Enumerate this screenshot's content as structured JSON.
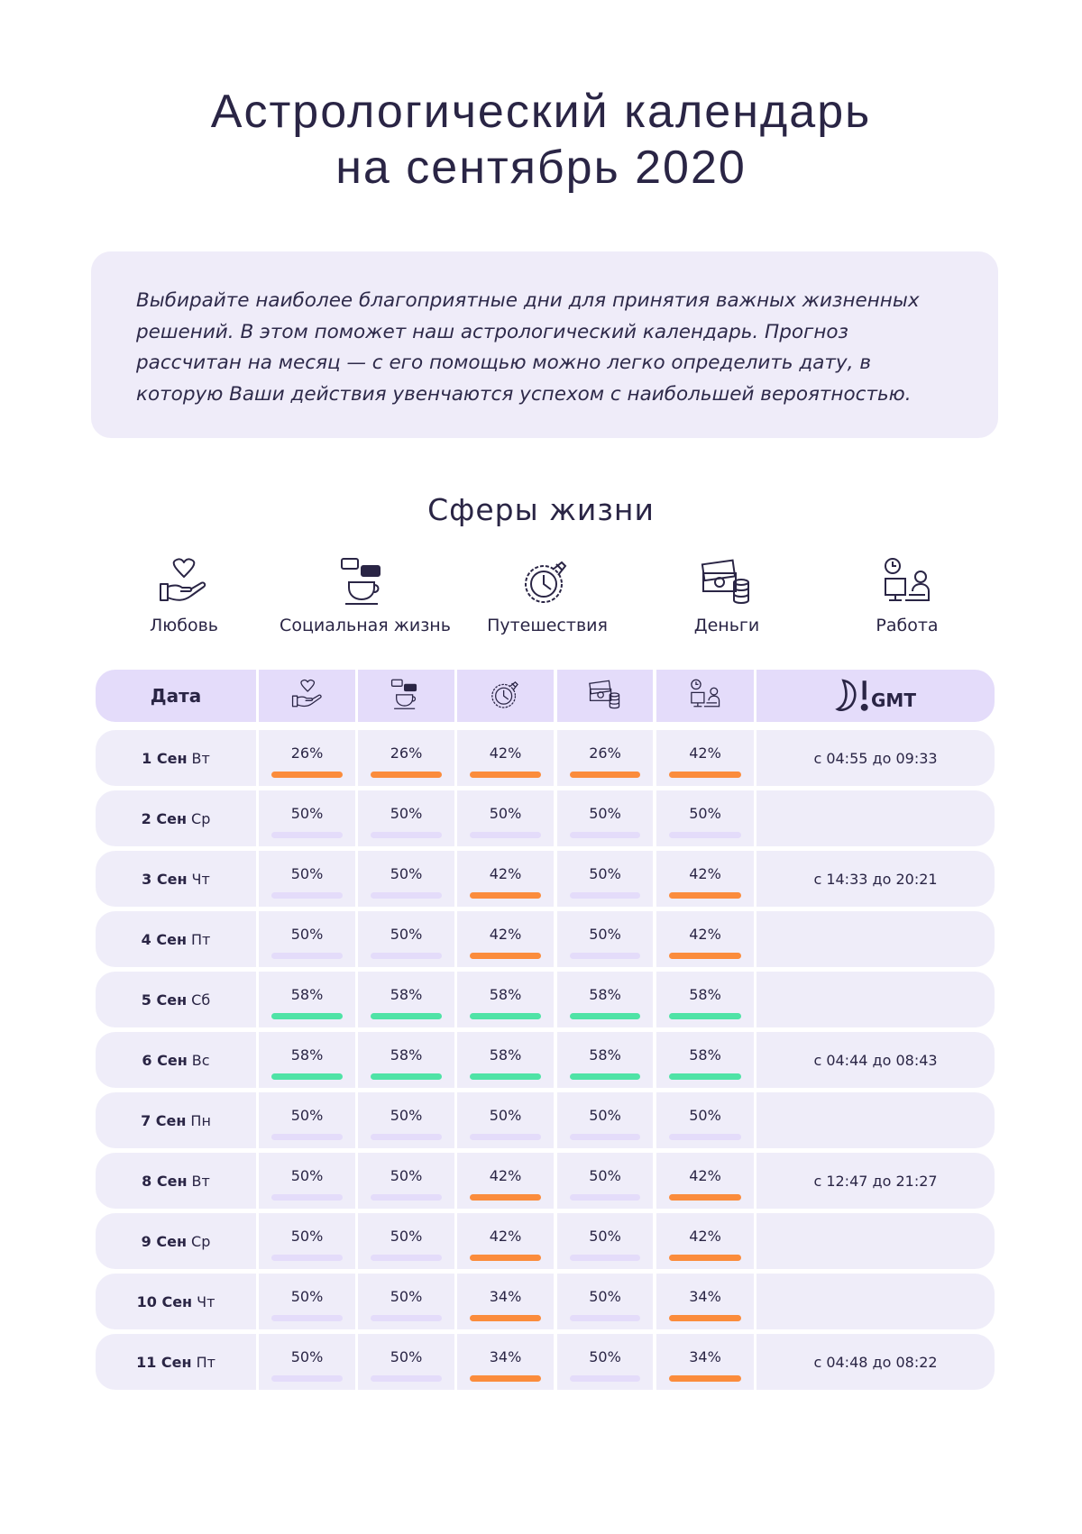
{
  "header": {
    "title_lines": [
      "Астрологический календарь",
      "на сентябрь 2020"
    ]
  },
  "intro": "Выбирайте наиболее благоприятные дни для принятия важных жизненных решений. В этом поможет наш астрологический календарь. Прогноз рассчитан на месяц — с его помощью можно легко определить дату, в которую Ваши действия увенчаются успехом с наибольшей вероятностью.",
  "spheres": {
    "title": "Сферы жизни",
    "items": [
      "Любовь",
      "Социальная жизнь",
      "Путешествия",
      "Деньги",
      "Работа"
    ]
  },
  "table": {
    "date_header": "Дата",
    "gmt_header": "GMT",
    "rows": [
      {
        "day": "1 Сен",
        "weekday": "Вт",
        "cells": [
          "26%",
          "26%",
          "42%",
          "26%",
          "42%"
        ],
        "time": "с 04:55 до 09:33"
      },
      {
        "day": "2 Сен",
        "weekday": "Ср",
        "cells": [
          "50%",
          "50%",
          "50%",
          "50%",
          "50%"
        ]
      },
      {
        "day": "3 Сен",
        "weekday": "Чт",
        "cells": [
          "50%",
          "50%",
          "42%",
          "50%",
          "42%"
        ],
        "time": "с 14:33 до 20:21"
      },
      {
        "day": "4 Сен",
        "weekday": "Пт",
        "cells": [
          "50%",
          "50%",
          "42%",
          "50%",
          "42%"
        ]
      },
      {
        "day": "5 Сен",
        "weekday": "Сб",
        "cells": [
          "58%",
          "58%",
          "58%",
          "58%",
          "58%"
        ]
      },
      {
        "day": "6 Сен",
        "weekday": "Вс",
        "cells": [
          "58%",
          "58%",
          "58%",
          "58%",
          "58%"
        ],
        "time": "с 04:44 до 08:43"
      },
      {
        "day": "7 Сен",
        "weekday": "Пн",
        "cells": [
          "50%",
          "50%",
          "50%",
          "50%",
          "50%"
        ]
      },
      {
        "day": "8 Сен",
        "weekday": "Вт",
        "cells": [
          "50%",
          "50%",
          "42%",
          "50%",
          "42%"
        ],
        "time": "с 12:47 до 21:27"
      },
      {
        "day": "9 Сен",
        "weekday": "Ср",
        "cells": [
          "50%",
          "50%",
          "42%",
          "50%",
          "42%"
        ]
      },
      {
        "day": "10 Сен",
        "weekday": "Чт",
        "cells": [
          "50%",
          "50%",
          "34%",
          "50%",
          "34%"
        ]
      },
      {
        "day": "11 Сен",
        "weekday": "Пт",
        "cells": [
          "50%",
          "50%",
          "34%",
          "50%",
          "34%"
        ],
        "time": "с 04:48 до 08:22"
      }
    ]
  }
}
